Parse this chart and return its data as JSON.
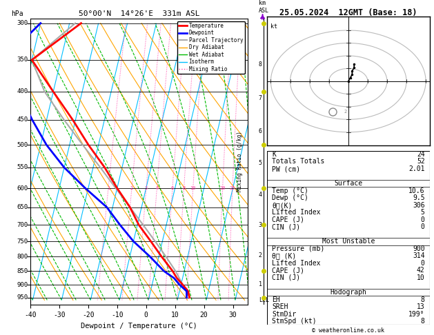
{
  "title_left": "50°00'N  14°26'E  331m ASL",
  "title_right": "25.05.2024  12GMT (Base: 18)",
  "xlabel": "Dewpoint / Temperature (°C)",
  "pressure_levels": [
    300,
    350,
    400,
    450,
    500,
    550,
    600,
    650,
    700,
    750,
    800,
    850,
    900,
    950
  ],
  "temp_ticks": [
    -40,
    -30,
    -20,
    -10,
    0,
    10,
    20,
    30
  ],
  "tmin": -40,
  "tmax": 35,
  "pmin": 300,
  "pmax": 960,
  "skew_factor": 45.0,
  "background_color": "#ffffff",
  "isotherm_color": "#00bfff",
  "dry_adiabat_color": "#ffa500",
  "wet_adiabat_color": "#00bb00",
  "mixing_ratio_color": "#ff44aa",
  "temp_color": "#ff0000",
  "dewpoint_color": "#0000ff",
  "parcel_color": "#aaaaaa",
  "temperature_data": {
    "pressure": [
      950,
      925,
      900,
      875,
      850,
      800,
      750,
      700,
      650,
      600,
      550,
      500,
      450,
      400,
      350,
      300
    ],
    "temp": [
      14.0,
      13.0,
      10.6,
      8.0,
      6.0,
      1.0,
      -4.0,
      -9.5,
      -14.0,
      -20.0,
      -26.0,
      -33.5,
      -41.0,
      -50.0,
      -60.0,
      -46.0
    ],
    "dewpoint": [
      13.0,
      12.5,
      9.5,
      7.0,
      3.0,
      -3.0,
      -10.0,
      -16.0,
      -22.0,
      -31.0,
      -40.0,
      -48.0,
      -55.0,
      -62.0,
      -70.0,
      -60.0
    ]
  },
  "parcel_data": {
    "pressure": [
      950,
      900,
      850,
      800,
      750,
      700,
      650,
      600,
      550,
      500,
      450,
      400,
      350,
      300
    ],
    "temp": [
      14.0,
      10.6,
      7.0,
      2.5,
      -2.5,
      -8.0,
      -14.0,
      -20.5,
      -27.5,
      -35.5,
      -44.0,
      -53.0,
      -60.0,
      -48.0
    ]
  },
  "km_labels": [
    1,
    2,
    3,
    4,
    5,
    6,
    7,
    8
  ],
  "km_pressures": [
    899,
    795,
    701,
    616,
    540,
    472,
    411,
    357
  ],
  "surface_data": {
    "K": 24,
    "Totals_Totals": 52,
    "PW_cm": "2.01",
    "Temp_C": "10.6",
    "Dewp_C": "9.5",
    "theta_e_K": 306,
    "Lifted_Index": 5,
    "CAPE_J": 0,
    "CIN_J": 0
  },
  "most_unstable": {
    "Pressure_mb": 900,
    "theta_e_K": 314,
    "Lifted_Index": 0,
    "CAPE_J": 42,
    "CIN_J": 10
  },
  "hodograph_stats": {
    "EH": 8,
    "SREH": 13,
    "StmDir": "199°",
    "StmSpd_kt": 8
  },
  "legend_items": [
    {
      "label": "Temperature",
      "color": "#ff0000",
      "lw": 2,
      "ls": "-"
    },
    {
      "label": "Dewpoint",
      "color": "#0000ff",
      "lw": 2,
      "ls": "-"
    },
    {
      "label": "Parcel Trajectory",
      "color": "#aaaaaa",
      "lw": 1.5,
      "ls": "-"
    },
    {
      "label": "Dry Adiabat",
      "color": "#ffa500",
      "lw": 1,
      "ls": "-"
    },
    {
      "label": "Wet Adiabat",
      "color": "#00bb00",
      "lw": 1,
      "ls": "-"
    },
    {
      "label": "Isotherm",
      "color": "#00bfff",
      "lw": 1,
      "ls": "-"
    },
    {
      "label": "Mixing Ratio",
      "color": "#ff44aa",
      "lw": 1,
      "ls": ":"
    }
  ]
}
